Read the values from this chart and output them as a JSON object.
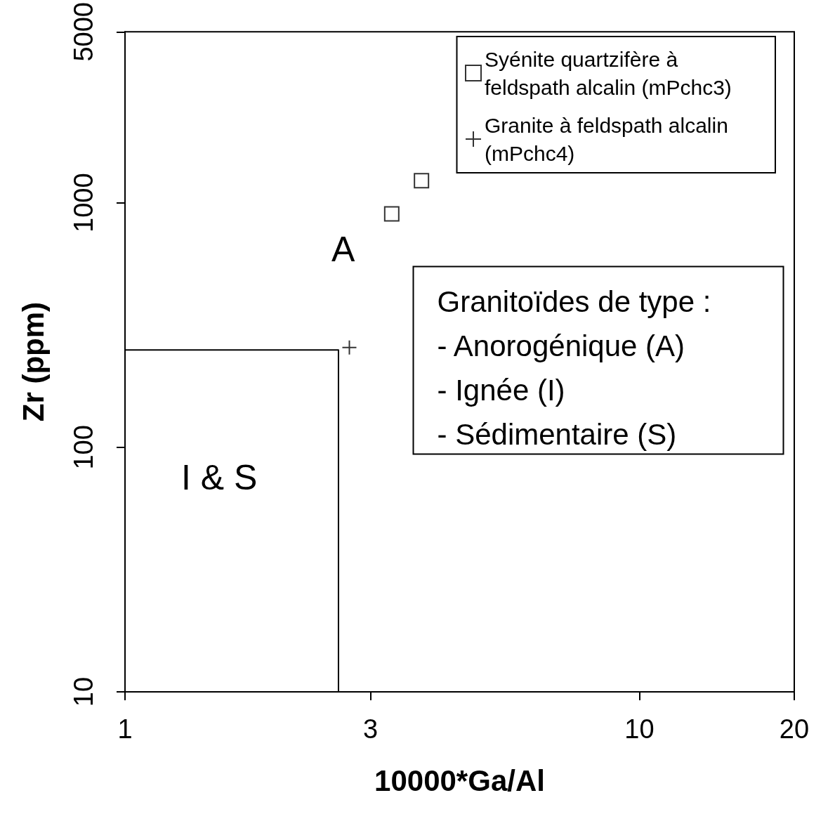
{
  "chart_data": {
    "type": "scatter",
    "xlabel": "10000*Ga/Al",
    "ylabel": "Zr (ppm)",
    "log": "xy",
    "xlim": [
      1,
      20
    ],
    "xticks": [
      1,
      3,
      10,
      20
    ],
    "ylim": [
      10,
      5000
    ],
    "yticks": [
      10,
      100,
      1000,
      5000
    ],
    "grid": false,
    "legend": "top right",
    "series": [
      {
        "name": "Syénite quartzifère à feldspath alcalin (mPchc3)",
        "color": "#000000",
        "marker": "square",
        "x": [
          3.3,
          3.77
        ],
        "values": [
          900,
          1230
        ]
      },
      {
        "name": "Granite à feldspath alcalin (mPchc4)",
        "color": "#000000",
        "marker": "cross",
        "x": [
          2.73
        ],
        "values": [
          256
        ]
      },
      {
        "type": "line",
        "color": "#000000",
        "marker": "none",
        "line_style": "solid",
        "x": [
          1,
          2.6,
          2.6
        ],
        "values": [
          250,
          250,
          10
        ]
      }
    ],
    "annotations": [
      "A",
      "I & S",
      "Granitoïdes de type :",
      "- Anorogénique (A)",
      "- Ignée (I)",
      "- Sédimentaire (S)"
    ]
  }
}
